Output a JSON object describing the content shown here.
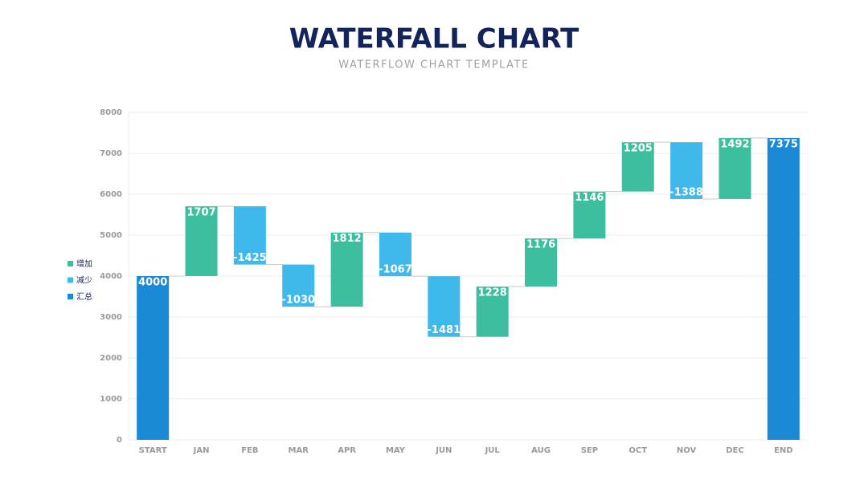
{
  "chart_data": {
    "type": "waterfall",
    "title": "WATERFALL CHART",
    "subtitle": "WATERFLOW CHART TEMPLATE",
    "categories": [
      "START",
      "JAN",
      "FEB",
      "MAR",
      "APR",
      "MAY",
      "JUN",
      "JUL",
      "AUG",
      "SEP",
      "OCT",
      "NOV",
      "DEC",
      "END"
    ],
    "series": [
      {
        "name": "增加",
        "color": "#3dbf9f",
        "values": [
          null,
          1707,
          null,
          null,
          1812,
          null,
          null,
          1228,
          1176,
          1146,
          1205,
          null,
          1492,
          null
        ]
      },
      {
        "name": "减少",
        "color": "#3fb8ec",
        "values": [
          null,
          null,
          -1425,
          -1030,
          null,
          -1067,
          -1481,
          null,
          null,
          null,
          null,
          -1388,
          null,
          null
        ]
      },
      {
        "name": "汇总",
        "color": "#1a8ad6",
        "values": [
          4000,
          null,
          null,
          null,
          null,
          null,
          null,
          null,
          null,
          null,
          null,
          null,
          null,
          7375
        ]
      }
    ],
    "ylim": [
      0,
      8000
    ],
    "yticks": [
      0,
      1000,
      2000,
      3000,
      4000,
      5000,
      6000,
      7000,
      8000
    ],
    "grid": true
  }
}
